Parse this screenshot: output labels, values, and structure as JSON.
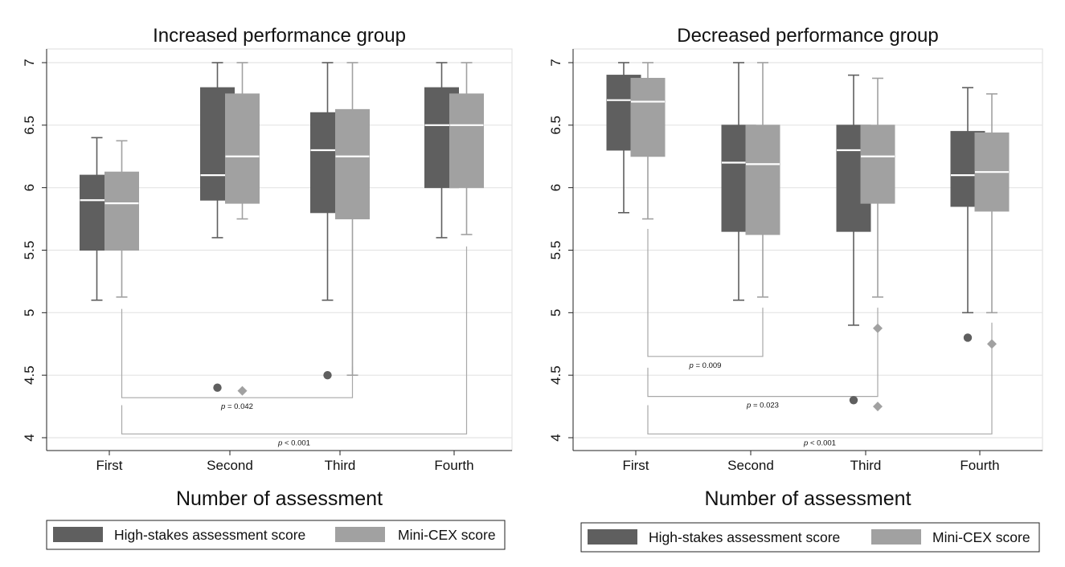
{
  "chart_data": [
    {
      "type": "box",
      "title": "Increased performance group",
      "xlabel": "Number of assessment",
      "ylabel": "",
      "ylim": [
        4,
        7
      ],
      "yticks": [
        {
          "value": 4,
          "label": "4"
        },
        {
          "value": 4.5,
          "label": "4.5"
        },
        {
          "value": 5,
          "label": "5"
        },
        {
          "value": 5.5,
          "label": "5.5"
        },
        {
          "value": 6,
          "label": "6"
        },
        {
          "value": 6.5,
          "label": "6.5"
        },
        {
          "value": 7,
          "label": "7"
        }
      ],
      "categories": [
        "First",
        "Second",
        "Third",
        "Fourth"
      ],
      "series": [
        {
          "name": "High-stakes assessment score",
          "color": "#5f5f5f",
          "boxes": [
            {
              "min": 5.1,
              "q1": 5.5,
              "median": 5.9,
              "q3": 6.1,
              "max": 6.4,
              "outliers": []
            },
            {
              "min": 5.6,
              "q1": 5.9,
              "median": 6.1,
              "q3": 6.8,
              "max": 7.0,
              "outliers": [
                4.4
              ]
            },
            {
              "min": 5.1,
              "q1": 5.8,
              "median": 6.3,
              "q3": 6.6,
              "max": 7.0,
              "outliers": [
                4.5
              ]
            },
            {
              "min": 5.6,
              "q1": 6.0,
              "median": 6.5,
              "q3": 6.8,
              "max": 7.0,
              "outliers": []
            }
          ]
        },
        {
          "name": "Mini-CEX score",
          "color": "#a1a1a1",
          "boxes": [
            {
              "min": 5.125,
              "q1": 5.5,
              "median": 5.875,
              "q3": 6.125,
              "max": 6.375,
              "outliers": []
            },
            {
              "min": 5.75,
              "q1": 5.875,
              "median": 6.25,
              "q3": 6.75,
              "max": 7.0,
              "outliers": [
                4.375
              ]
            },
            {
              "min": 4.5,
              "q1": 5.75,
              "median": 6.25,
              "q3": 6.625,
              "max": 7.0,
              "outliers": []
            },
            {
              "min": 5.625,
              "q1": 6.0,
              "median": 6.5,
              "q3": 6.75,
              "max": 7.0,
              "outliers": []
            }
          ]
        }
      ],
      "brackets": [
        {
          "from": 0,
          "to": 2,
          "left_top": 5.03,
          "right_top": 4.57,
          "level": 4.32,
          "label_prefix": "p",
          "label_rest": " = 0.042"
        },
        {
          "from": 0,
          "to": 3,
          "left_top": 4.26,
          "right_top": 5.53,
          "level": 4.03,
          "label_prefix": "p",
          "label_rest": " < 0.001"
        }
      ],
      "legend": [
        "High-stakes assessment score",
        "Mini-CEX score"
      ]
    },
    {
      "type": "box",
      "title": "Decreased performance group",
      "xlabel": "Number of assessment",
      "ylabel": "",
      "ylim": [
        4,
        7
      ],
      "yticks": [
        {
          "value": 4,
          "label": "4"
        },
        {
          "value": 4.5,
          "label": "4.5"
        },
        {
          "value": 5,
          "label": "5"
        },
        {
          "value": 5.5,
          "label": "5.5"
        },
        {
          "value": 6,
          "label": "6"
        },
        {
          "value": 6.5,
          "label": "6.5"
        },
        {
          "value": 7,
          "label": "7"
        }
      ],
      "categories": [
        "First",
        "Second",
        "Third",
        "Fourth"
      ],
      "series": [
        {
          "name": "High-stakes assessment score",
          "color": "#5f5f5f",
          "boxes": [
            {
              "min": 5.8,
              "q1": 6.3,
              "median": 6.7,
              "q3": 6.9,
              "max": 7.0,
              "outliers": []
            },
            {
              "min": 5.1,
              "q1": 5.65,
              "median": 6.2,
              "q3": 6.5,
              "max": 7.0,
              "outliers": []
            },
            {
              "min": 4.9,
              "q1": 5.65,
              "median": 6.3,
              "q3": 6.5,
              "max": 6.9,
              "outliers": [
                4.3
              ]
            },
            {
              "min": 5.0,
              "q1": 5.85,
              "median": 6.1,
              "q3": 6.45,
              "max": 6.8,
              "outliers": [
                4.8
              ]
            }
          ]
        },
        {
          "name": "Mini-CEX score",
          "color": "#a1a1a1",
          "boxes": [
            {
              "min": 5.75,
              "q1": 6.25,
              "median": 6.688,
              "q3": 6.875,
              "max": 7.0,
              "outliers": []
            },
            {
              "min": 5.125,
              "q1": 5.625,
              "median": 6.188,
              "q3": 6.5,
              "max": 7.0,
              "outliers": []
            },
            {
              "min": 5.125,
              "q1": 5.875,
              "median": 6.25,
              "q3": 6.5,
              "max": 6.875,
              "outliers": [
                4.875,
                4.25
              ]
            },
            {
              "min": 5.0,
              "q1": 5.812,
              "median": 6.125,
              "q3": 6.438,
              "max": 6.75,
              "outliers": [
                4.75
              ]
            }
          ]
        }
      ],
      "brackets": [
        {
          "from": 0,
          "to": 1,
          "left_top": 5.67,
          "right_top": 5.04,
          "level": 4.65,
          "label_prefix": "p",
          "label_rest": " = 0.009"
        },
        {
          "from": 0,
          "to": 2,
          "left_top": 4.56,
          "right_top": 5.04,
          "level": 4.33,
          "label_prefix": "p",
          "label_rest": " = 0.023"
        },
        {
          "from": 0,
          "to": 3,
          "left_top": 4.26,
          "right_top": 4.92,
          "level": 4.03,
          "label_prefix": "p",
          "label_rest": " < 0.001"
        }
      ],
      "legend": [
        "High-stakes assessment score",
        "Mini-CEX score"
      ]
    }
  ]
}
